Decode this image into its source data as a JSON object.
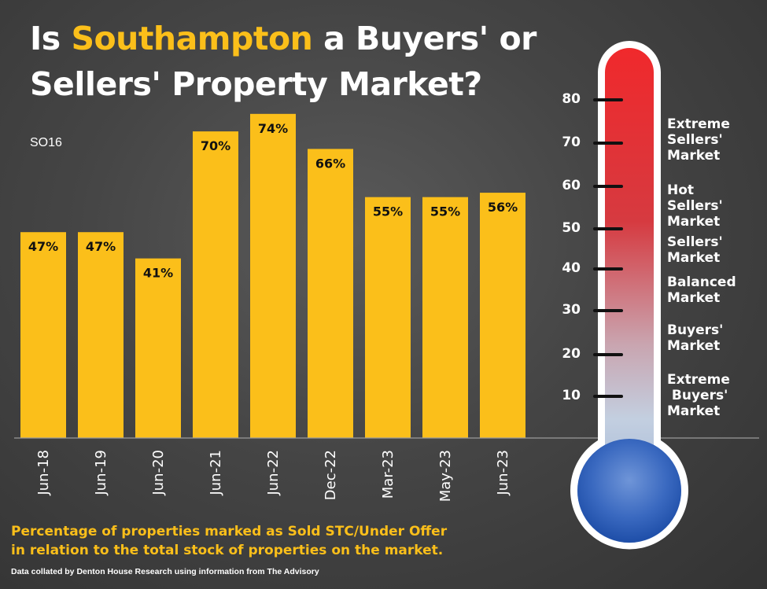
{
  "title": {
    "prefix": "Is ",
    "highlight": "Southampton",
    "suffix_line1": " a Buyers' or",
    "line2": "Sellers' Property Market?"
  },
  "subtitle": "SO16",
  "caption": {
    "line1": "Percentage of properties marked as Sold STC/Under Offer",
    "line2": "in relation to the total stock of properties on the market."
  },
  "source": "Data collated by Denton House Research using information from The Advisory",
  "colors": {
    "bar": "#fbbf1a",
    "highlight": "#fbbf1a",
    "therm_top": "#e8282c",
    "therm_bottom": "#2d5fb8"
  },
  "chart_data": {
    "type": "bar",
    "categories": [
      "Jun-18",
      "Jun-19",
      "Jun-20",
      "Jun-21",
      "Jun-22",
      "Dec-22",
      "Mar-23",
      "May-23",
      "Jun-23"
    ],
    "values": [
      47,
      47,
      41,
      70,
      74,
      66,
      55,
      55,
      56
    ],
    "data_labels": [
      "47%",
      "47%",
      "41%",
      "70%",
      "74%",
      "66%",
      "55%",
      "55%",
      "56%"
    ],
    "ylim": [
      0,
      100
    ],
    "grid": false
  },
  "thermometer": {
    "scale": [
      "80",
      "70",
      "60",
      "50",
      "40",
      "30",
      "20",
      "10"
    ],
    "zones": [
      "Extreme\nSellers'\nMarket",
      "Hot\nSellers'\nMarket",
      "Sellers'\nMarket",
      "Balanced\nMarket",
      "Buyers'\nMarket",
      "Extreme\n Buyers'\nMarket"
    ]
  }
}
